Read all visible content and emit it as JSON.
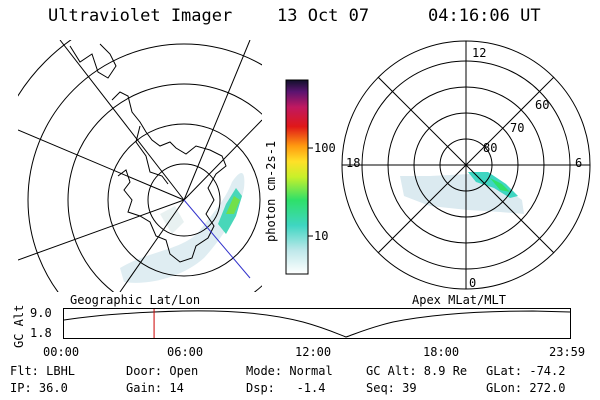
{
  "header": {
    "instrument": "Ultraviolet Imager",
    "date": "13 Oct 07",
    "time": "04:16:06 UT"
  },
  "colorbar": {
    "label": "photon cm-2s-1",
    "ticks": [
      "100",
      "10"
    ]
  },
  "polar": {
    "clock_labels": {
      "top": "12",
      "bottom": "0",
      "left": "18",
      "right": "6"
    },
    "lat_labels": [
      "60",
      "70",
      "80"
    ]
  },
  "coords": {
    "left_label": "Geographic Lat/Lon",
    "right_label": "Apex MLat/MLT"
  },
  "altitude_plot": {
    "axis_label": "GC Alt",
    "y_ticks": [
      "9.0",
      "1.8"
    ],
    "x_ticks": [
      "00:00",
      "06:00",
      "12:00",
      "18:00",
      "23:59"
    ],
    "current_time_fraction": 0.178
  },
  "info": {
    "flt": "Flt: LBHL",
    "ip": "IP: 36.0",
    "door": "Door: Open",
    "gain": "Gain: 14",
    "mode": "Mode: Normal",
    "dsp": "Dsp:   -1.4",
    "gcalt": "GC Alt: 8.9 Re",
    "seq": "Seq: 39",
    "glat": "GLat: -74.2",
    "glon": "GLon: 272.0"
  },
  "colors": {
    "marker": "#cc0000",
    "map_line": "#000000"
  }
}
